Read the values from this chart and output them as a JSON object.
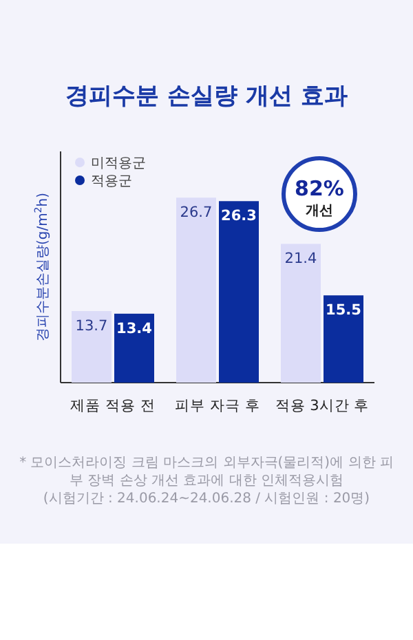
{
  "chart_data": {
    "type": "bar",
    "title": "경피수분 손실량 개선 효과",
    "ylabel": "경피수분손실량(g/m$^{2}$h)",
    "categories": [
      "제품 적용 전",
      "피부 자극 후",
      "적용 3시간 후"
    ],
    "series": [
      {
        "name": "미적용군",
        "color": "#dcdcf8",
        "values": [
          13.7,
          26.7,
          21.4
        ]
      },
      {
        "name": "적용군",
        "color": "#0b2d9e",
        "values": [
          13.4,
          26.3,
          15.5
        ]
      }
    ],
    "ylim": [
      5.5,
      32
    ],
    "data_labels": true,
    "legend": "top left",
    "tick_labels": "x",
    "annotations": [
      "82%",
      "개선",
      "* 모이스처라이징 크림 마스크의 외부자극(물리적)에 의한 피부 장벽 손상 개선 효과에 대한 인체적용시험",
      "(시험기간 : 24.06.24~24.06.28 / 시험인원 : 20명)"
    ]
  }
}
